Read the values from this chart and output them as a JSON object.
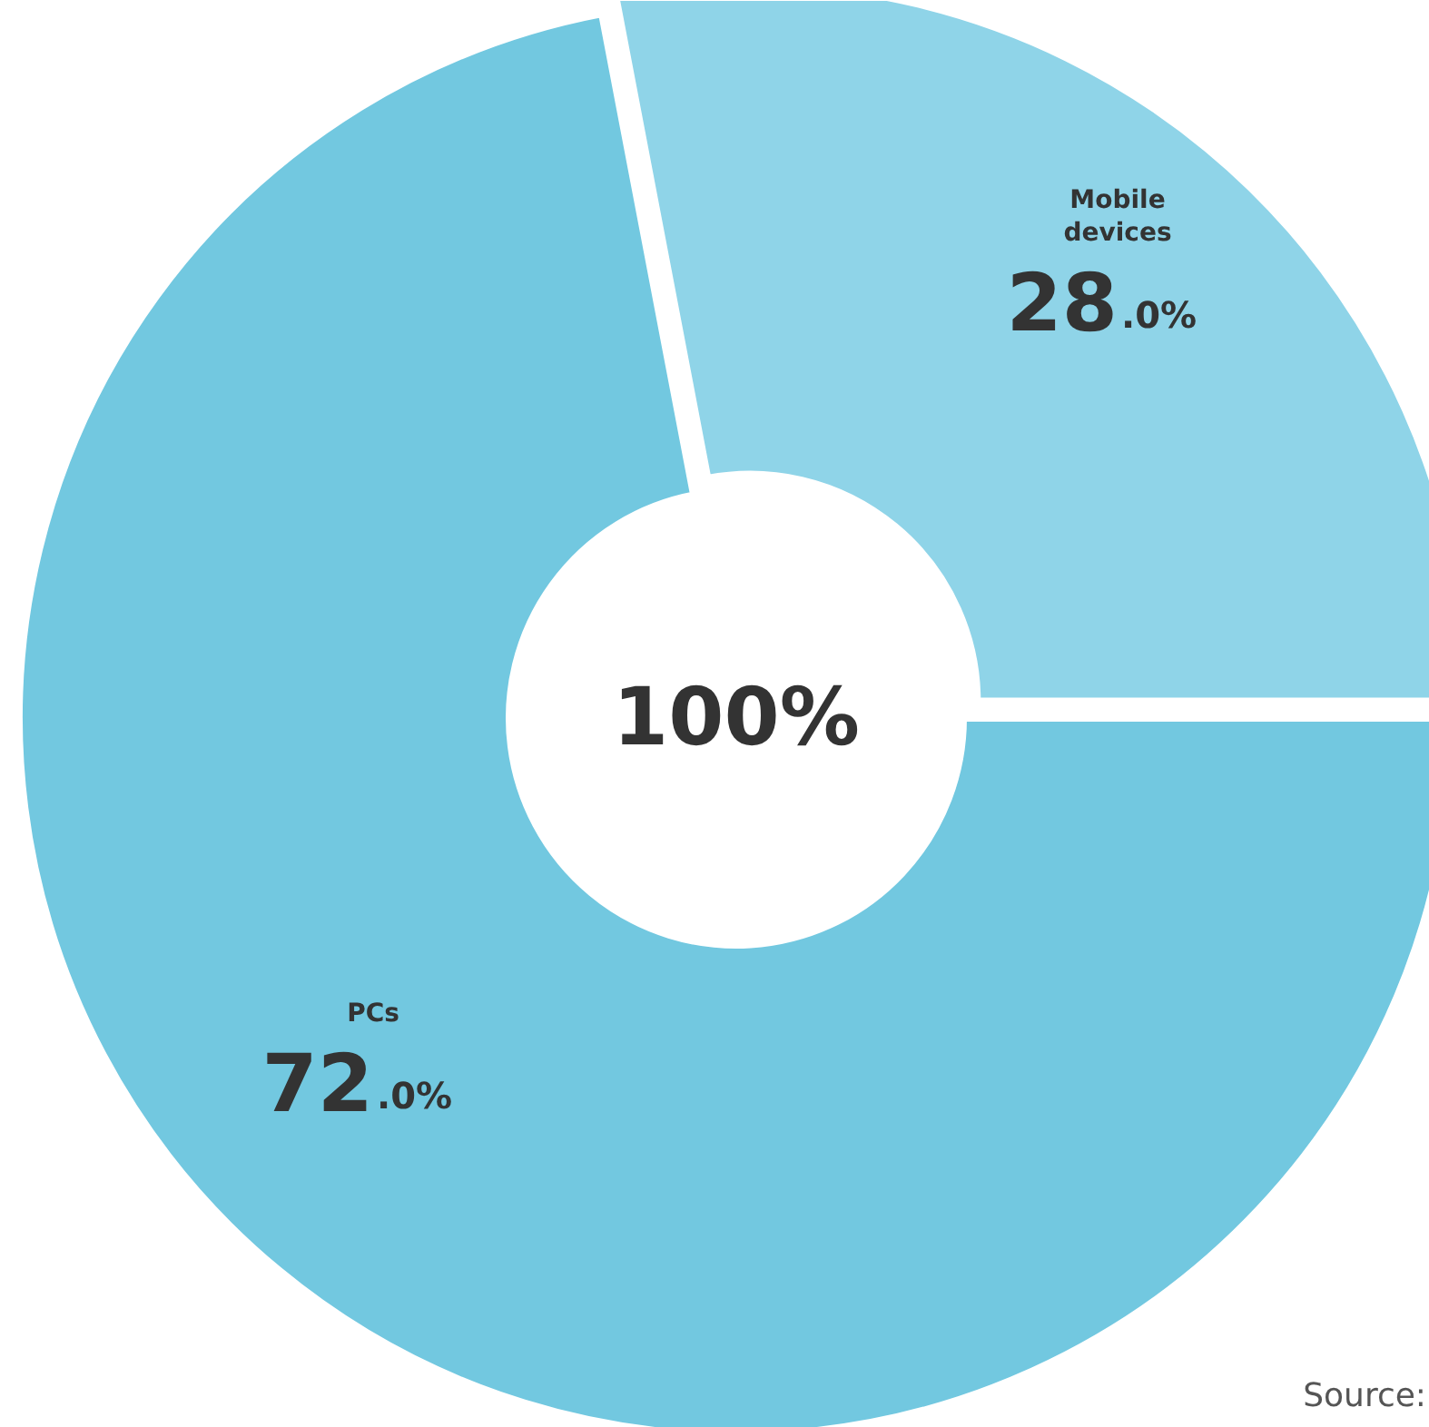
{
  "chart_data": {
    "type": "donut",
    "categories": [
      "Mobile devices",
      "PCs"
    ],
    "values": [
      28.0,
      72.0
    ],
    "colors": [
      "#8fd4e8",
      "#72c8e0"
    ],
    "value_labels": [
      "28.0%",
      "72.0%"
    ],
    "annotations": [
      "100%",
      "Source:"
    ]
  }
}
